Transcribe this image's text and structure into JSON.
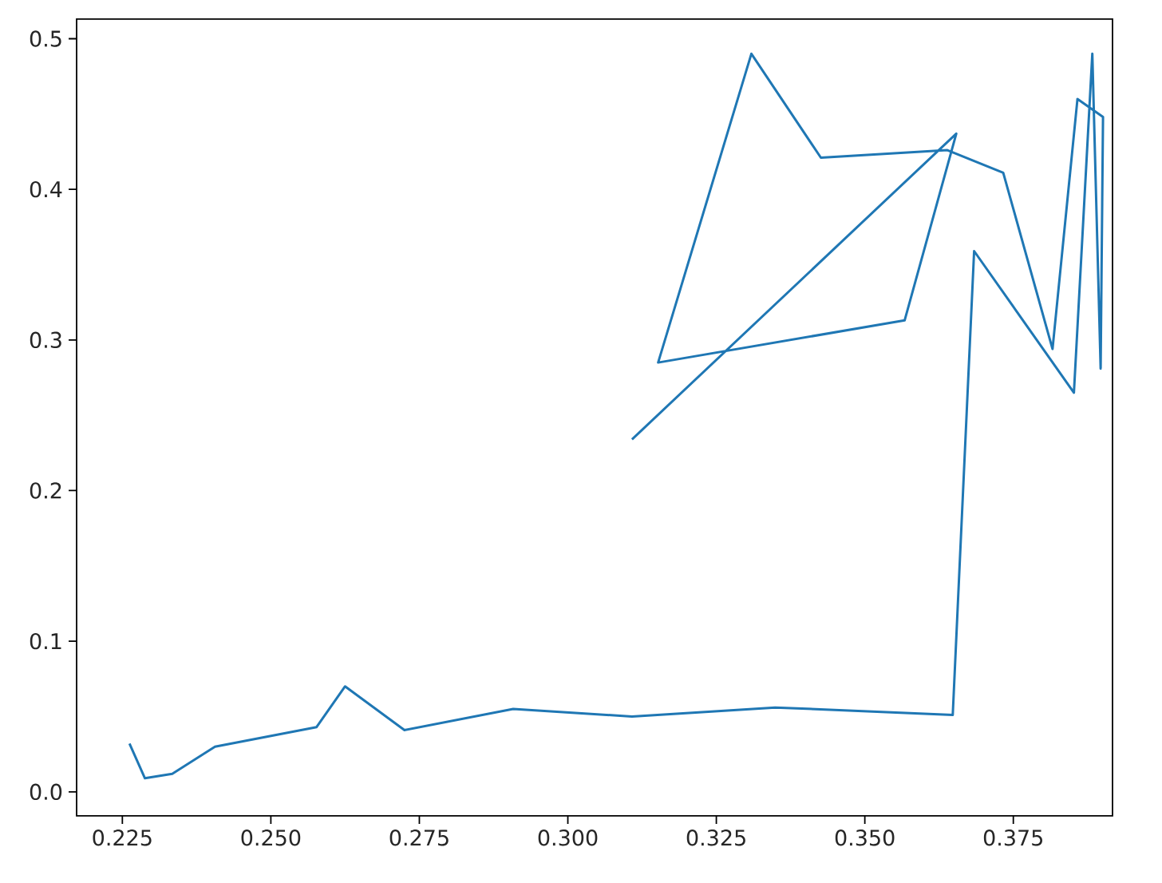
{
  "chart_data": {
    "type": "line",
    "x": [
      0.2262,
      0.2288,
      0.2334,
      0.2406,
      0.2577,
      0.2625,
      0.2725,
      0.2908,
      0.3108,
      0.3349,
      0.3648,
      0.3684,
      0.3852,
      0.3883,
      0.3897,
      0.3901,
      0.3858,
      0.3816,
      0.3733,
      0.3639,
      0.3426,
      0.3309,
      0.3152,
      0.3567,
      0.3654,
      0.3108
    ],
    "values": [
      0.032,
      0.009,
      0.012,
      0.03,
      0.043,
      0.07,
      0.041,
      0.055,
      0.05,
      0.056,
      0.051,
      0.359,
      0.265,
      0.49,
      0.281,
      0.448,
      0.46,
      0.294,
      0.411,
      0.426,
      0.421,
      0.49,
      0.285,
      0.313,
      0.437,
      0.234
    ],
    "color": "#1f77b4",
    "xlim": [
      0.2173,
      0.3917
    ],
    "ylim": [
      -0.016,
      0.513
    ],
    "xticks": [
      0.225,
      {
        "value": 0.25,
        "label": "0.250"
      },
      0.275,
      {
        "value": 0.3,
        "label": "0.300"
      },
      0.325,
      {
        "value": 0.35,
        "label": "0.350"
      },
      0.375
    ],
    "yticks": [
      {
        "value": 0,
        "label": "0.0"
      },
      0.1,
      0.2,
      0.3,
      0.4,
      0.5
    ],
    "grid": false,
    "marker": "none",
    "line_style": "solid"
  }
}
